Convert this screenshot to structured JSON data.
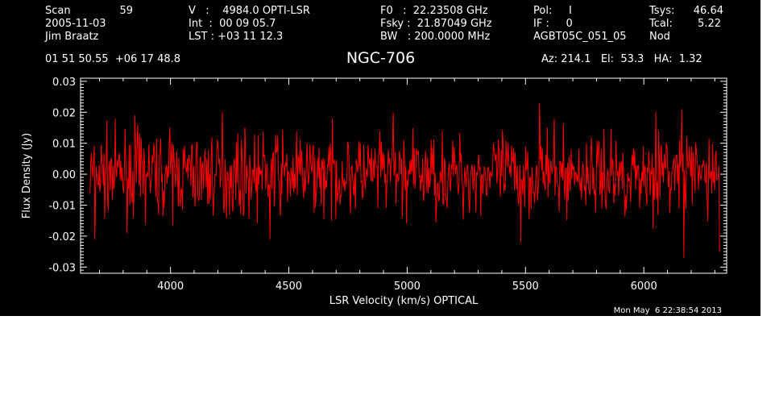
{
  "header": {
    "scan_label": "Scan",
    "scan_value": "59",
    "date": "2005-11-03",
    "observer": "Jim Braatz",
    "velocity": "V   :    4984.0 OPTI-LSR",
    "int_time": "Int  :  00 09 05.7",
    "lst": "LST : +03 11 12.3",
    "f0": "F0   :  22.23508 GHz",
    "fsky": "Fsky :  21.87049 GHz",
    "bw": "BW   : 200.0000 MHz",
    "pol": "Pol:     I",
    "if": "IF :     0",
    "project": "AGBT05C_051_05",
    "tsys_label": "Tsys:",
    "tsys_value": "46.64",
    "tcal_label": "Tcal:",
    "tcal_value": "5.22",
    "proc": "Nod",
    "coords": "01 51 50.55  +06 17 48.8",
    "object": "NGC-706",
    "azelha": "Az: 214.1   El:  53.3   HA:  1.32"
  },
  "timestamp": "Mon May  6 22:38:54 2013",
  "chart_data": {
    "type": "line",
    "title": "NGC-706",
    "xlabel": "LSR Velocity (km/s) OPTICAL",
    "ylabel": "Flux Density (Jy)",
    "xlim": [
      3620,
      6350
    ],
    "ylim": [
      -0.032,
      0.031
    ],
    "xticks": [
      4000,
      4500,
      5000,
      5500,
      6000
    ],
    "xtick_labels": [
      "4000",
      "4500",
      "5000",
      "5500",
      "6000"
    ],
    "yticks": [
      -0.03,
      -0.02,
      -0.01,
      0.0,
      0.01,
      0.02,
      0.03
    ],
    "ytick_labels": [
      "-0.03",
      "-0.02",
      "-0.01",
      "0.00",
      "0.01",
      "0.02",
      "0.03"
    ],
    "series_color": "#ff0000",
    "axis_color": "#ffffff",
    "background": "#000000",
    "series": [
      {
        "x_start": 3660,
        "x_end": 6320,
        "n_points": 900,
        "noise_rms": 0.0065,
        "peaks": [
          {
            "x": 3680,
            "y": -0.021
          },
          {
            "x": 3850,
            "y": 0.019
          },
          {
            "x": 4220,
            "y": 0.02
          },
          {
            "x": 4420,
            "y": -0.021
          },
          {
            "x": 4940,
            "y": 0.02
          },
          {
            "x": 5480,
            "y": -0.022
          },
          {
            "x": 5560,
            "y": 0.023
          },
          {
            "x": 6050,
            "y": 0.02
          },
          {
            "x": 6160,
            "y": 0.021
          },
          {
            "x": 6170,
            "y": -0.027
          },
          {
            "x": 6320,
            "y": -0.025
          }
        ]
      }
    ]
  }
}
